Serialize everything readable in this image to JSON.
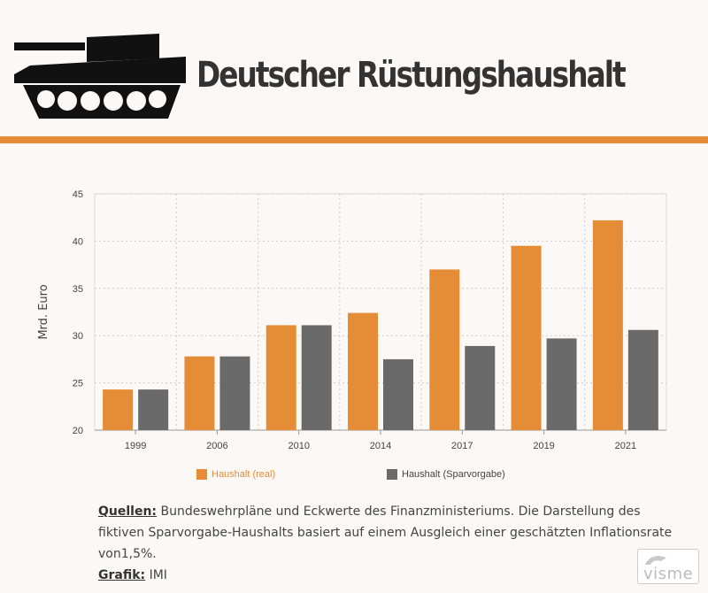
{
  "header": {
    "title": "Deutscher Rüstungshaushalt",
    "icon": "tank-icon"
  },
  "colors": {
    "accent": "#e58c36",
    "series_real": "#e58c36",
    "series_spar": "#6b6a6b",
    "background": "#fcf8f5"
  },
  "chart_data": {
    "type": "bar",
    "title": "",
    "xlabel": "",
    "ylabel": "Mrd. Euro",
    "ylim": [
      20,
      45
    ],
    "yticks": [
      20,
      25,
      30,
      35,
      40,
      45
    ],
    "grid": true,
    "legend_position": "bottom",
    "categories": [
      "1999",
      "2006",
      "2010",
      "2014",
      "2017",
      "2019",
      "2021"
    ],
    "series": [
      {
        "name": "Haushalt (real)",
        "values": [
          24.3,
          27.8,
          31.1,
          32.4,
          37.0,
          39.5,
          42.2
        ]
      },
      {
        "name": "Haushalt (Sparvorgabe)",
        "values": [
          24.3,
          27.8,
          31.1,
          27.5,
          28.9,
          29.7,
          30.6
        ]
      }
    ]
  },
  "footer": {
    "sources_label": "Quellen:",
    "sources_text": "Bundeswehrpläne und Eckwerte des Finanzministeriums. Die Darstellung des fiktiven Sparvorgabe-Haushalts basiert auf einem Ausgleich einer geschätzten Inflationsrate von1,5%.",
    "grafik_label": "Grafik:",
    "grafik_text": "IMI",
    "logo_text": "visme"
  }
}
